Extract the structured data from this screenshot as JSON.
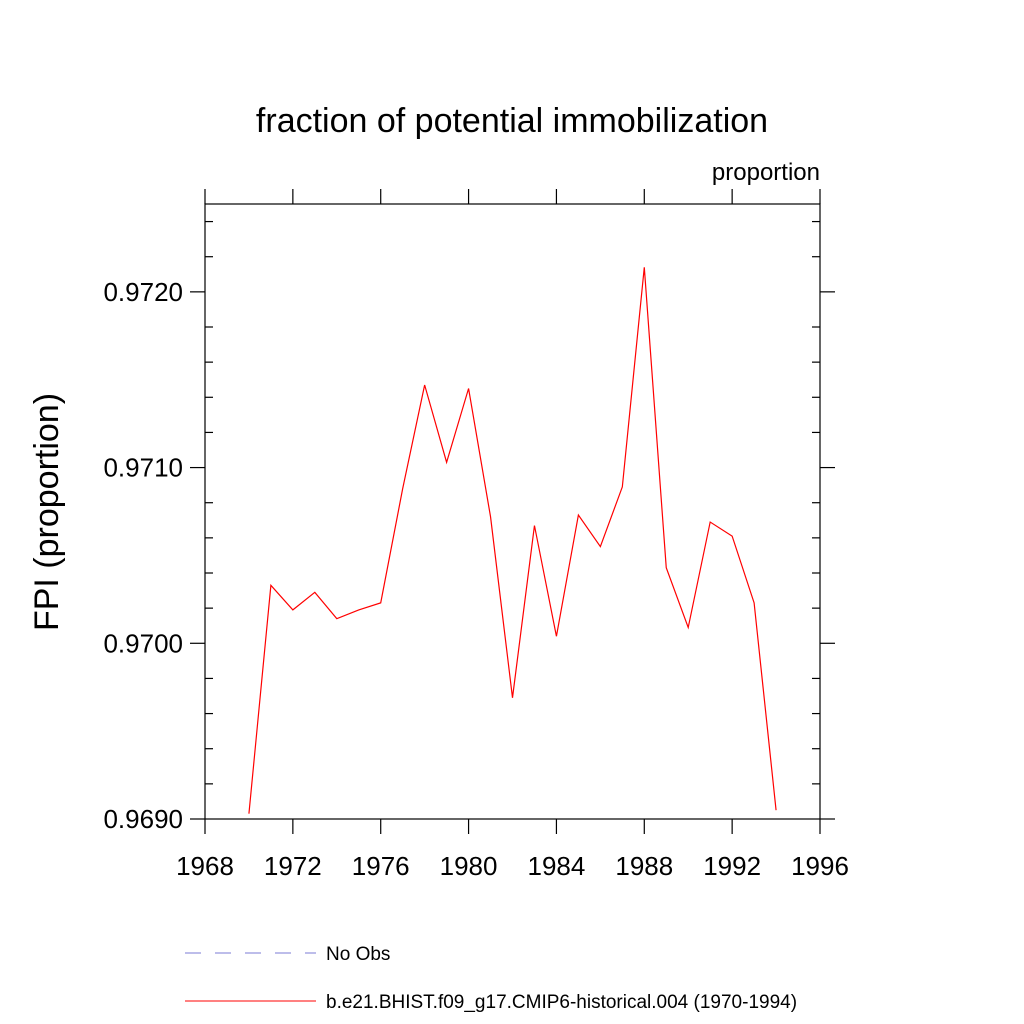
{
  "chart_data": {
    "type": "line",
    "title": "fraction of potential immobilization",
    "subtitle": "proportion",
    "xlabel": "",
    "ylabel": "FPI  (proportion)",
    "xlim": [
      1968,
      1996
    ],
    "ylim": [
      0.969,
      0.9725
    ],
    "x_ticks": [
      "1968",
      "1972",
      "1976",
      "1980",
      "1984",
      "1988",
      "1992",
      "1996"
    ],
    "y_ticks": [
      "0.9690",
      "0.9700",
      "0.9710",
      "0.9720"
    ],
    "grid": false,
    "legend_position": "bottom",
    "series": [
      {
        "name": "b.e21.BHIST.f09_g17.CMIP6-historical.004 (1970-1994)",
        "color": "#ff0000",
        "style": "solid",
        "x": [
          1970,
          1971,
          1972,
          1973,
          1974,
          1975,
          1976,
          1977,
          1978,
          1979,
          1980,
          1981,
          1982,
          1983,
          1984,
          1985,
          1986,
          1987,
          1988,
          1989,
          1990,
          1991,
          1992,
          1993,
          1994
        ],
        "y": [
          0.96903,
          0.97033,
          0.97019,
          0.97029,
          0.97014,
          0.97019,
          0.97023,
          0.97088,
          0.97147,
          0.97103,
          0.97145,
          0.97072,
          0.96969,
          0.97067,
          0.97004,
          0.97073,
          0.97055,
          0.97089,
          0.97214,
          0.97043,
          0.97009,
          0.97069,
          0.97061,
          0.97023,
          0.96905
        ]
      }
    ],
    "legend": [
      {
        "label": "No Obs",
        "color": "#7b7bd6",
        "style": "dashed"
      },
      {
        "label": "b.e21.BHIST.f09_g17.CMIP6-historical.004 (1970-1994)",
        "color": "#ff0000",
        "style": "solid"
      }
    ]
  }
}
